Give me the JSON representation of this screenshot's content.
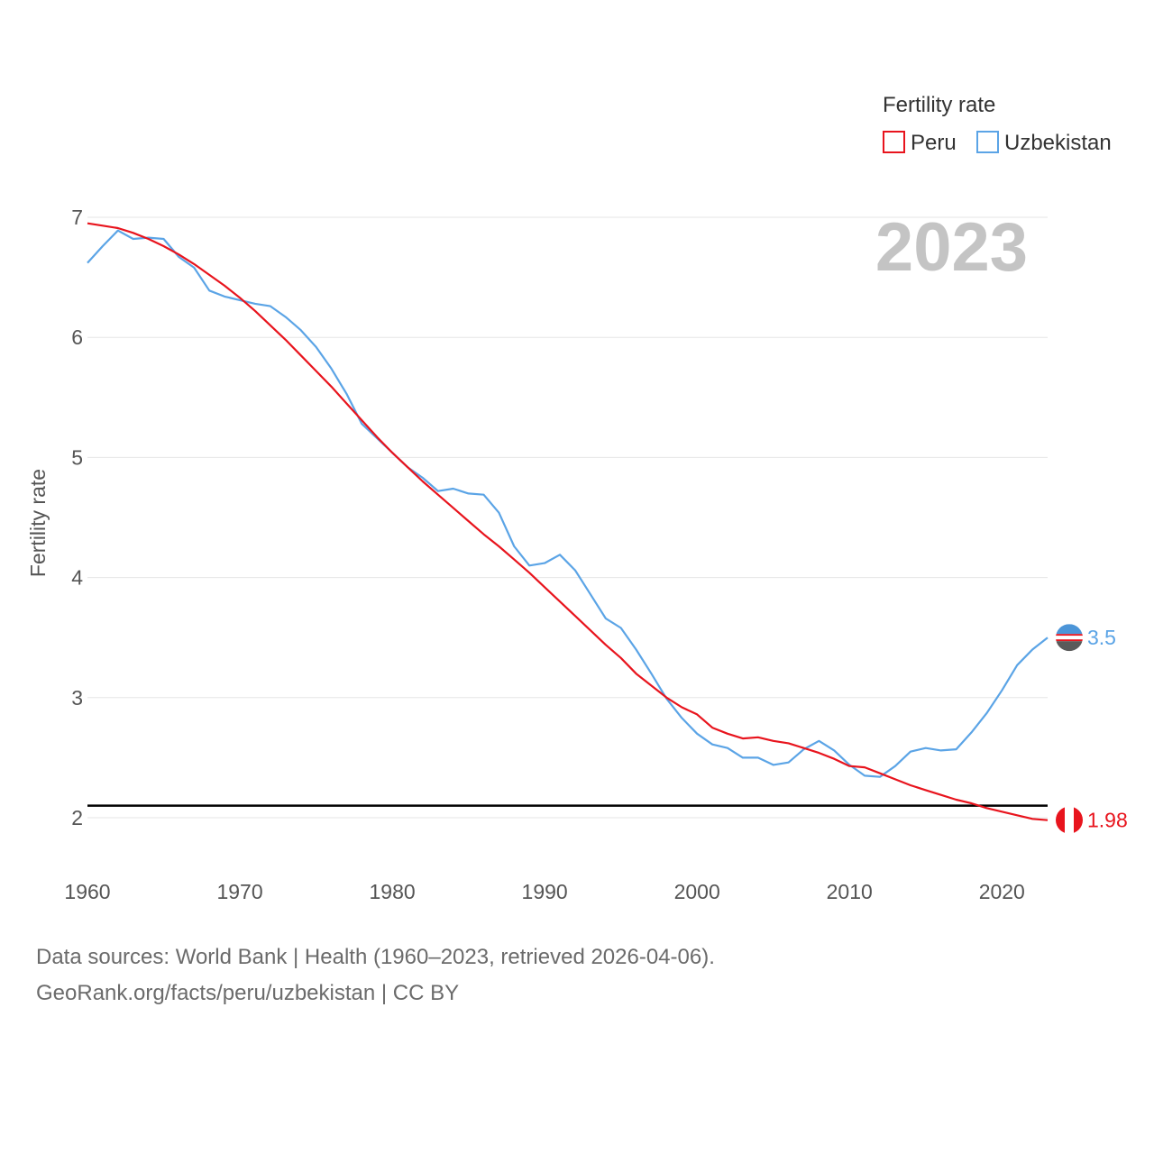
{
  "chart_data": {
    "type": "line",
    "title": "",
    "watermark_year": "2023",
    "xlabel": "",
    "ylabel": "Fertility rate",
    "xlim": [
      1960,
      2023
    ],
    "ylim": [
      1.6,
      7.0
    ],
    "x_ticks": [
      "1960",
      "1970",
      "1980",
      "1990",
      "2000",
      "2010",
      "2020"
    ],
    "y_ticks": [
      "2",
      "3",
      "4",
      "5",
      "6",
      "7"
    ],
    "grid": true,
    "legend": {
      "title": "Fertility rate",
      "position": "top-right"
    },
    "reference_line": {
      "y": 2.1,
      "color": "#000000"
    },
    "x": [
      1960,
      1961,
      1962,
      1963,
      1964,
      1965,
      1966,
      1967,
      1968,
      1969,
      1970,
      1971,
      1972,
      1973,
      1974,
      1975,
      1976,
      1977,
      1978,
      1979,
      1980,
      1981,
      1982,
      1983,
      1984,
      1985,
      1986,
      1987,
      1988,
      1989,
      1990,
      1991,
      1992,
      1993,
      1994,
      1995,
      1996,
      1997,
      1998,
      1999,
      2000,
      2001,
      2002,
      2003,
      2004,
      2005,
      2006,
      2007,
      2008,
      2009,
      2010,
      2011,
      2012,
      2013,
      2014,
      2015,
      2016,
      2017,
      2018,
      2019,
      2020,
      2021,
      2022,
      2023
    ],
    "series": [
      {
        "name": "Peru",
        "color": "#e8141d",
        "end_label": "1.98",
        "values": [
          6.95,
          6.93,
          6.91,
          6.87,
          6.82,
          6.76,
          6.69,
          6.61,
          6.52,
          6.43,
          6.33,
          6.22,
          6.1,
          5.98,
          5.85,
          5.72,
          5.59,
          5.45,
          5.31,
          5.17,
          5.04,
          4.92,
          4.8,
          4.69,
          4.58,
          4.47,
          4.36,
          4.26,
          4.15,
          4.04,
          3.92,
          3.8,
          3.68,
          3.56,
          3.44,
          3.33,
          3.2,
          3.1,
          3.0,
          2.92,
          2.86,
          2.75,
          2.7,
          2.66,
          2.67,
          2.64,
          2.62,
          2.58,
          2.54,
          2.49,
          2.43,
          2.42,
          2.37,
          2.32,
          2.27,
          2.23,
          2.19,
          2.15,
          2.12,
          2.08,
          2.05,
          2.02,
          1.99,
          1.98
        ]
      },
      {
        "name": "Uzbekistan",
        "color": "#5ba4e6",
        "end_label": "3.5",
        "values": [
          6.62,
          6.76,
          6.89,
          6.82,
          6.83,
          6.82,
          6.67,
          6.58,
          6.39,
          6.34,
          6.31,
          6.28,
          6.26,
          6.17,
          6.06,
          5.92,
          5.74,
          5.53,
          5.28,
          5.16,
          5.04,
          4.92,
          4.83,
          4.72,
          4.74,
          4.7,
          4.69,
          4.54,
          4.26,
          4.1,
          4.12,
          4.19,
          4.06,
          3.86,
          3.66,
          3.58,
          3.4,
          3.2,
          2.99,
          2.83,
          2.7,
          2.61,
          2.58,
          2.5,
          2.5,
          2.44,
          2.46,
          2.57,
          2.64,
          2.56,
          2.44,
          2.35,
          2.34,
          2.43,
          2.55,
          2.58,
          2.56,
          2.57,
          2.71,
          2.87,
          3.06,
          3.27,
          3.4,
          3.5
        ]
      }
    ]
  },
  "footer": {
    "line1": "Data sources: World Bank | Health (1960–2023, retrieved 2026-04-06).",
    "line2": "GeoRank.org/facts/peru/uzbekistan | CC BY"
  }
}
